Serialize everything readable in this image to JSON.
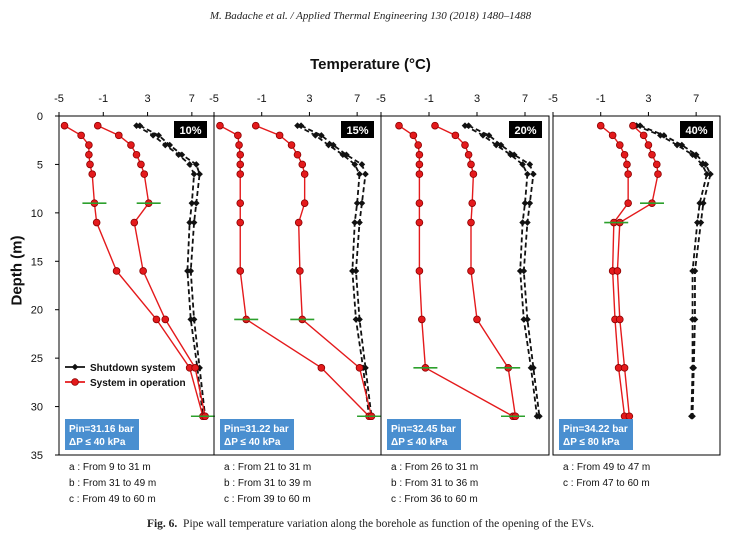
{
  "header": "M. Badache et al. / Applied Thermal Engineering 130 (2018) 1480–1488",
  "caption": {
    "label": "Fig. 6.",
    "text": "Pipe wall temperature variation along the borehole as function of the opening of the EVs."
  },
  "colors": {
    "shutdown": "#111111",
    "operation": "#e41a1c",
    "marker_fill": "#e41a1c",
    "crossbar": "#2ca02c",
    "info_box": "#4a8fd0"
  },
  "chart_data": {
    "type": "line",
    "xlabel": "Temperature (°C)",
    "ylabel": "Depth (m)",
    "xlim": [
      -5,
      9
    ],
    "ylim": [
      0,
      35
    ],
    "x_ticks": [
      -5,
      -1,
      3,
      7
    ],
    "y_ticks": [
      0,
      5,
      10,
      15,
      20,
      25,
      30,
      35
    ],
    "legend": [
      {
        "name": "Shutdown system",
        "key": "shutdown"
      },
      {
        "name": "System in operation",
        "key": "operation"
      }
    ],
    "panels": [
      {
        "opening": "10%",
        "info": [
          "Pin=31.16 bar",
          "ΔP ≤ 40 kPa"
        ],
        "notes": [
          "a : From 9 to 31 m",
          "b : From 31 to 49 m",
          "c : From 49 to 60 m"
        ],
        "shutdown": [
          {
            "y": [
              1,
              2,
              3,
              4,
              5,
              6,
              9,
              11,
              16,
              21,
              26,
              31
            ],
            "x": [
              2.3,
              4.0,
              5.0,
              6.1,
              7.4,
              7.7,
              7.4,
              7.2,
              6.9,
              7.2,
              7.7,
              8.2
            ]
          },
          {
            "y": [
              1,
              2,
              3,
              4,
              5,
              6,
              9,
              11,
              16,
              21,
              26,
              31
            ],
            "x": [
              2.0,
              3.5,
              4.6,
              5.8,
              6.8,
              7.2,
              7.0,
              6.8,
              6.6,
              6.9,
              7.5,
              8.0
            ]
          }
        ],
        "operation": [
          {
            "y": [
              1,
              2,
              3,
              4,
              5,
              6,
              9,
              11,
              16,
              21,
              26,
              31
            ],
            "x": [
              -4.5,
              -3.0,
              -2.3,
              -2.3,
              -2.2,
              -2.0,
              -1.8,
              -1.6,
              0.2,
              3.8,
              6.8,
              8.0
            ]
          },
          {
            "y": [
              1,
              2,
              3,
              4,
              5,
              6,
              9,
              11,
              16,
              21,
              26,
              31
            ],
            "x": [
              -1.5,
              0.4,
              1.5,
              2.0,
              2.4,
              2.7,
              3.1,
              1.8,
              2.6,
              4.6,
              7.3,
              8.2
            ]
          }
        ],
        "crossbars": [
          {
            "x": -1.8,
            "y": 9
          },
          {
            "x": 3.1,
            "y": 9
          },
          {
            "x": 8.0,
            "y": 31
          }
        ]
      },
      {
        "opening": "15%",
        "info": [
          "Pin=31.22 bar",
          "ΔP ≤ 40 kPa"
        ],
        "notes": [
          "a : From 21 to 31 m",
          "b : From 31 to 39 m",
          "c : From 39 to 60 m"
        ],
        "shutdown": [
          {
            "y": [
              1,
              2,
              3,
              4,
              5,
              6,
              9,
              11,
              16,
              21,
              26,
              31
            ],
            "x": [
              2.3,
              4.0,
              5.0,
              6.1,
              7.4,
              7.7,
              7.4,
              7.2,
              6.9,
              7.2,
              7.7,
              8.2
            ]
          },
          {
            "y": [
              1,
              2,
              3,
              4,
              5,
              6,
              9,
              11,
              16,
              21,
              26,
              31
            ],
            "x": [
              2.0,
              3.5,
              4.6,
              5.8,
              6.8,
              7.2,
              7.0,
              6.8,
              6.6,
              6.9,
              7.5,
              8.0
            ]
          }
        ],
        "operation": [
          {
            "y": [
              1,
              2,
              3,
              4,
              5,
              6,
              9,
              11,
              16,
              21,
              26,
              31
            ],
            "x": [
              -4.5,
              -3.0,
              -2.9,
              -2.8,
              -2.8,
              -2.8,
              -2.8,
              -2.8,
              -2.8,
              -2.3,
              4.0,
              8.0
            ]
          },
          {
            "y": [
              1,
              2,
              3,
              4,
              5,
              6,
              9,
              11,
              16,
              21,
              26,
              31
            ],
            "x": [
              -1.5,
              0.5,
              1.5,
              2.0,
              2.4,
              2.6,
              2.6,
              2.1,
              2.2,
              2.4,
              7.2,
              8.2
            ]
          }
        ],
        "crossbars": [
          {
            "x": -2.3,
            "y": 21
          },
          {
            "x": 2.4,
            "y": 21
          },
          {
            "x": 8.0,
            "y": 31
          }
        ]
      },
      {
        "opening": "20%",
        "info": [
          "Pin=32.45 bar",
          "ΔP ≤ 40 kPa"
        ],
        "notes": [
          "a : From 26 to 31 m",
          "b : From 31 to 36 m",
          "c : From 36 to 60 m"
        ],
        "shutdown": [
          {
            "y": [
              1,
              2,
              3,
              4,
              5,
              6,
              9,
              11,
              16,
              21,
              26,
              31
            ],
            "x": [
              2.3,
              4.0,
              5.0,
              6.1,
              7.4,
              7.7,
              7.4,
              7.2,
              6.9,
              7.2,
              7.7,
              8.2
            ]
          },
          {
            "y": [
              1,
              2,
              3,
              4,
              5,
              6,
              9,
              11,
              16,
              21,
              26,
              31
            ],
            "x": [
              2.0,
              3.5,
              4.6,
              5.8,
              6.8,
              7.2,
              7.0,
              6.8,
              6.6,
              6.9,
              7.5,
              8.0
            ]
          }
        ],
        "operation": [
          {
            "y": [
              1,
              2,
              3,
              4,
              5,
              6,
              9,
              11,
              16,
              21,
              26,
              31
            ],
            "x": [
              -3.5,
              -2.3,
              -1.9,
              -1.8,
              -1.8,
              -1.8,
              -1.8,
              -1.8,
              -1.8,
              -1.6,
              -1.3,
              6.0
            ]
          },
          {
            "y": [
              1,
              2,
              3,
              4,
              5,
              6,
              9,
              11,
              16,
              21,
              26,
              31
            ],
            "x": [
              -0.5,
              1.2,
              2.0,
              2.3,
              2.5,
              2.7,
              2.6,
              2.5,
              2.5,
              3.0,
              5.6,
              6.2
            ]
          }
        ],
        "crossbars": [
          {
            "x": -1.3,
            "y": 26
          },
          {
            "x": 5.6,
            "y": 26
          },
          {
            "x": 6.0,
            "y": 31
          }
        ]
      },
      {
        "opening": "40%",
        "info": [
          "Pin=34.22 bar",
          "ΔP ≤ 80 kPa"
        ],
        "notes": [
          "a : From 49 to 47 m",
          "c : From 47 to 60 m"
        ],
        "shutdown": [
          {
            "y": [
              1,
              2,
              3,
              4,
              5,
              6,
              9,
              11,
              16,
              21,
              26,
              31
            ],
            "x": [
              2.3,
              4.3,
              5.8,
              7.0,
              7.8,
              8.2,
              7.6,
              7.4,
              6.9,
              6.9,
              6.8,
              6.7
            ]
          },
          {
            "y": [
              1,
              2,
              3,
              4,
              5,
              6,
              9,
              11,
              16,
              21,
              26,
              31
            ],
            "x": [
              2.0,
              4.0,
              5.4,
              6.7,
              7.5,
              7.9,
              7.3,
              7.1,
              6.7,
              6.7,
              6.7,
              6.6
            ]
          }
        ],
        "operation": [
          {
            "y": [
              1,
              2,
              3,
              4,
              5,
              6,
              9,
              11,
              16,
              21,
              26,
              31
            ],
            "x": [
              -1.0,
              0.0,
              0.6,
              1.0,
              1.2,
              1.3,
              1.3,
              0.1,
              0.0,
              0.2,
              0.5,
              1.0
            ]
          },
          {
            "y": [
              1,
              2,
              3,
              4,
              5,
              6,
              9,
              11,
              16,
              21,
              26,
              31
            ],
            "x": [
              1.7,
              2.6,
              3.0,
              3.3,
              3.7,
              3.8,
              3.3,
              0.6,
              0.4,
              0.6,
              1.0,
              1.4
            ]
          }
        ],
        "crossbars": [
          {
            "x": 3.3,
            "y": 9
          },
          {
            "x": 0.3,
            "y": 11
          }
        ]
      }
    ]
  }
}
